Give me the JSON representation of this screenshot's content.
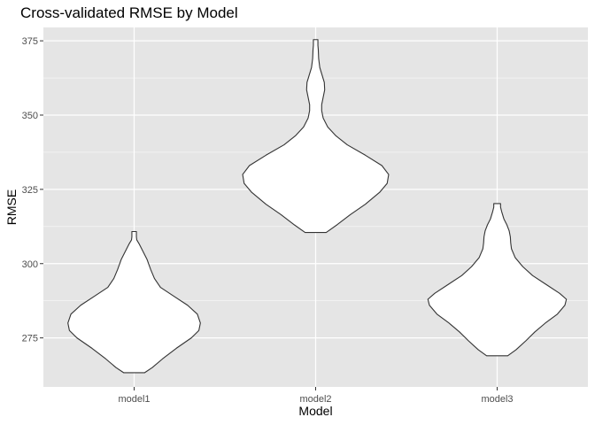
{
  "chart_data": {
    "type": "violin",
    "title": "Cross-validated RMSE by Model",
    "xlabel": "Model",
    "ylabel": "RMSE",
    "categories": [
      "model1",
      "model2",
      "model3"
    ],
    "ylim": [
      258.5,
      379.5
    ],
    "yticks": [
      275,
      300,
      325,
      350,
      375
    ],
    "grid": true,
    "colors": {
      "panel": "#e5e5e5",
      "grid": "#ffffff",
      "violin_fill": "#ffffff",
      "violin_stroke": "#333333"
    },
    "violins": [
      {
        "category": "model1",
        "min": 263.3,
        "max": 310.8,
        "profile": [
          [
            263.3,
            0.14
          ],
          [
            265.0,
            0.24
          ],
          [
            268.0,
            0.38
          ],
          [
            271.5,
            0.56
          ],
          [
            275.0,
            0.76
          ],
          [
            277.5,
            0.86
          ],
          [
            280.0,
            0.88
          ],
          [
            283.0,
            0.84
          ],
          [
            286.0,
            0.71
          ],
          [
            289.0,
            0.53
          ],
          [
            292.0,
            0.35
          ],
          [
            295.0,
            0.27
          ],
          [
            298.0,
            0.22
          ],
          [
            301.5,
            0.17
          ],
          [
            304.0,
            0.12
          ],
          [
            306.5,
            0.07
          ],
          [
            308.0,
            0.035
          ],
          [
            309.0,
            0.03
          ],
          [
            310.8,
            0.03
          ]
        ]
      },
      {
        "category": "model2",
        "min": 310.5,
        "max": 375.4,
        "profile": [
          [
            310.5,
            0.14
          ],
          [
            313.0,
            0.28
          ],
          [
            316.5,
            0.46
          ],
          [
            320.0,
            0.66
          ],
          [
            324.0,
            0.85
          ],
          [
            327.0,
            0.95
          ],
          [
            330.0,
            0.97
          ],
          [
            333.0,
            0.88
          ],
          [
            336.5,
            0.66
          ],
          [
            340.0,
            0.42
          ],
          [
            343.0,
            0.27
          ],
          [
            346.0,
            0.16
          ],
          [
            349.0,
            0.1
          ],
          [
            351.5,
            0.08
          ],
          [
            353.5,
            0.08
          ],
          [
            356.0,
            0.1
          ],
          [
            358.5,
            0.12
          ],
          [
            361.0,
            0.115
          ],
          [
            363.5,
            0.085
          ],
          [
            366.0,
            0.055
          ],
          [
            369.0,
            0.04
          ],
          [
            372.0,
            0.035
          ],
          [
            373.5,
            0.03
          ],
          [
            375.4,
            0.03
          ]
        ]
      },
      {
        "category": "model3",
        "min": 269.0,
        "max": 320.2,
        "profile": [
          [
            269.0,
            0.14
          ],
          [
            271.0,
            0.25
          ],
          [
            274.0,
            0.38
          ],
          [
            277.0,
            0.5
          ],
          [
            280.0,
            0.64
          ],
          [
            283.0,
            0.8
          ],
          [
            286.0,
            0.9
          ],
          [
            288.0,
            0.92
          ],
          [
            290.0,
            0.83
          ],
          [
            293.0,
            0.65
          ],
          [
            296.0,
            0.47
          ],
          [
            299.0,
            0.34
          ],
          [
            302.0,
            0.24
          ],
          [
            305.0,
            0.19
          ],
          [
            307.0,
            0.18
          ],
          [
            309.0,
            0.175
          ],
          [
            311.0,
            0.16
          ],
          [
            313.0,
            0.13
          ],
          [
            315.0,
            0.09
          ],
          [
            317.5,
            0.06
          ],
          [
            319.0,
            0.045
          ],
          [
            320.2,
            0.045
          ]
        ]
      }
    ]
  }
}
